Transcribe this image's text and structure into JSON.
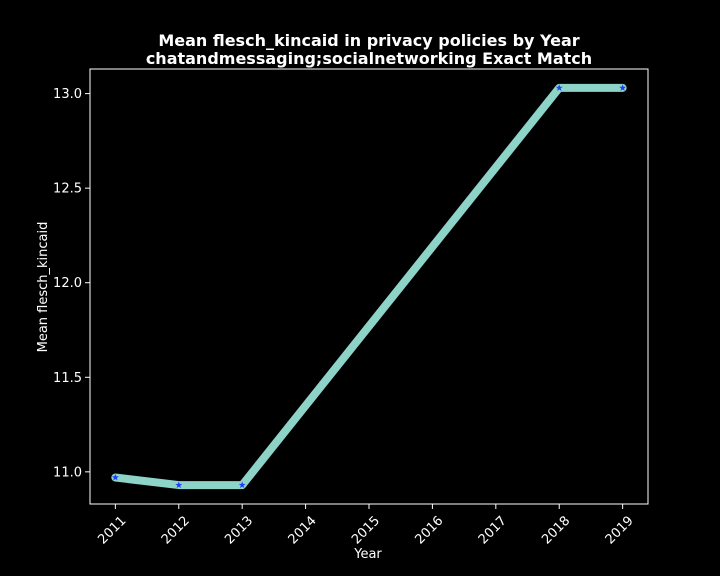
{
  "chart_data": {
    "type": "line",
    "title": "Mean flesch_kincaid in privacy policies by Year",
    "subtitle": "chatandmessaging;socialnetworking Exact Match",
    "xlabel": "Year",
    "ylabel": "Mean flesch_kincaid",
    "x": [
      2011,
      2012,
      2013,
      2018,
      2019
    ],
    "xticks": [
      "2011",
      "2012",
      "2013",
      "2014",
      "2015",
      "2016",
      "2017",
      "2018",
      "2019"
    ],
    "xlim": [
      2010.6,
      2019.4
    ],
    "yticks": [
      11.0,
      11.5,
      12.0,
      12.5,
      13.0
    ],
    "ylim": [
      10.83,
      13.13
    ],
    "grid": false,
    "series": [
      {
        "values": [
          10.97,
          10.93,
          10.93,
          13.03,
          13.03
        ]
      }
    ],
    "colors": {
      "background": "#000000",
      "line": "#8dd3c7",
      "marker": "#1f3cff",
      "text": "#ffffff",
      "axes": "#ffffff"
    }
  }
}
